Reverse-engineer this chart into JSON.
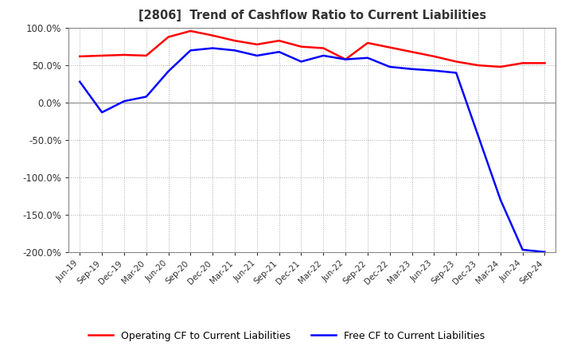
{
  "title": "[2806]  Trend of Cashflow Ratio to Current Liabilities",
  "title_color": "#333333",
  "background_color": "#ffffff",
  "plot_background_color": "#ffffff",
  "grid_color": "#aaaaaa",
  "x_labels": [
    "Jun-19",
    "Sep-19",
    "Dec-19",
    "Mar-20",
    "Jun-20",
    "Sep-20",
    "Dec-20",
    "Mar-21",
    "Jun-21",
    "Sep-21",
    "Dec-21",
    "Mar-22",
    "Jun-22",
    "Sep-22",
    "Dec-22",
    "Mar-23",
    "Jun-23",
    "Sep-23",
    "Dec-23",
    "Mar-24",
    "Jun-24",
    "Sep-24"
  ],
  "operating_cf": [
    62.0,
    63.0,
    64.0,
    63.0,
    88.0,
    96.0,
    90.0,
    83.0,
    78.0,
    83.0,
    75.0,
    73.0,
    58.0,
    80.0,
    74.0,
    68.0,
    62.0,
    55.0,
    50.0,
    48.0,
    53.0,
    53.0
  ],
  "free_cf": [
    28.0,
    -13.0,
    2.0,
    8.0,
    42.0,
    70.0,
    73.0,
    70.0,
    63.0,
    68.0,
    55.0,
    63.0,
    58.0,
    60.0,
    48.0,
    45.0,
    43.0,
    40.0,
    -45.0,
    -130.0,
    -197.0,
    -200.0
  ],
  "operating_color": "#ff0000",
  "free_color": "#0000ff",
  "ylim": [
    -200.0,
    100.0
  ],
  "yticks": [
    100.0,
    50.0,
    0.0,
    -50.0,
    -100.0,
    -150.0,
    -200.0
  ],
  "legend_op": "Operating CF to Current Liabilities",
  "legend_free": "Free CF to Current Liabilities",
  "line_width": 1.8
}
